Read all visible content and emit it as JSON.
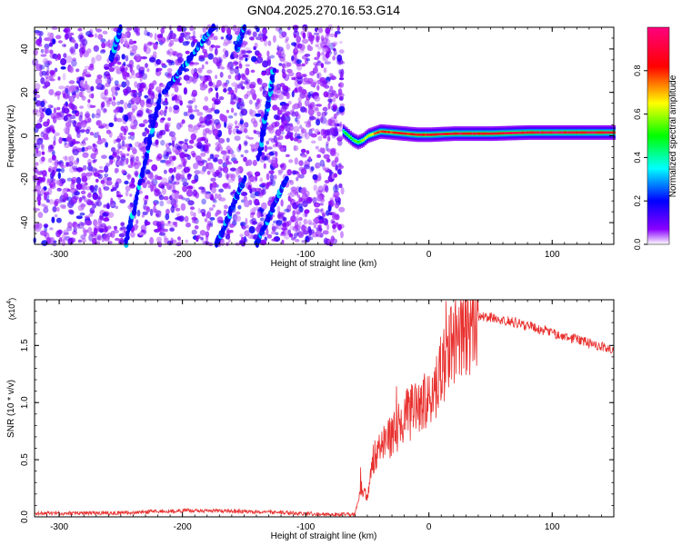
{
  "chart_data": [
    {
      "type": "heatmap",
      "title": "GN04.2025.270.16.53.G14",
      "xlabel": "Height of straight line (km)",
      "ylabel": "Frequency (Hz)",
      "xlim": [
        -320,
        150
      ],
      "ylim": [
        -50,
        50
      ],
      "xticks": [
        -300,
        -200,
        -100,
        0,
        100
      ],
      "yticks": [
        -40,
        -20,
        0,
        20,
        40
      ],
      "colorbar": {
        "label": "Normalized spectral amplitude",
        "range": [
          0,
          1
        ],
        "ticks": [
          "0.0",
          "0.2",
          "0.4",
          "0.6",
          "0.8"
        ],
        "colormap": [
          "#ffffff",
          "#7a00ff",
          "#0000ff",
          "#00ffff",
          "#00ff00",
          "#ffff00",
          "#ff0000",
          "#ff0080"
        ]
      },
      "noise_region": {
        "x_range": [
          -320,
          -70
        ],
        "y_range": [
          -50,
          50
        ],
        "typical_amplitude": 0.15
      },
      "tone_ridge": {
        "x_range": [
          -70,
          150
        ],
        "frequency_hz": [
          {
            "x": -70,
            "f": 2
          },
          {
            "x": -66,
            "f": 0
          },
          {
            "x": -62,
            "f": -2
          },
          {
            "x": -58,
            "f": -3
          },
          {
            "x": -54,
            "f": -2
          },
          {
            "x": -50,
            "f": 0
          },
          {
            "x": -45,
            "f": 1
          },
          {
            "x": -40,
            "f": 2
          },
          {
            "x": -30,
            "f": 1.5
          },
          {
            "x": -20,
            "f": 1
          },
          {
            "x": -10,
            "f": 0.5
          },
          {
            "x": 0,
            "f": 0.5
          },
          {
            "x": 20,
            "f": 1
          },
          {
            "x": 50,
            "f": 1
          },
          {
            "x": 80,
            "f": 1.5
          },
          {
            "x": 110,
            "f": 1.5
          },
          {
            "x": 150,
            "f": 1.5
          }
        ],
        "amplitude": [
          {
            "x": -70,
            "a": 0.5
          },
          {
            "x": -55,
            "a": 0.6
          },
          {
            "x": -40,
            "a": 0.85
          },
          {
            "x": -20,
            "a": 0.9
          },
          {
            "x": 0,
            "a": 0.92
          },
          {
            "x": 40,
            "a": 0.95
          },
          {
            "x": 80,
            "a": 1.0
          },
          {
            "x": 120,
            "a": 0.98
          },
          {
            "x": 150,
            "a": 0.95
          }
        ]
      },
      "diagonal_streaks": [
        {
          "x0": -246,
          "f0": -50,
          "x1": -218,
          "f1": 18
        },
        {
          "x0": -258,
          "f0": 35,
          "x1": -250,
          "f1": 50
        },
        {
          "x0": -215,
          "f0": 20,
          "x1": -175,
          "f1": 50
        },
        {
          "x0": -172,
          "f0": -50,
          "x1": -150,
          "f1": -20
        },
        {
          "x0": -138,
          "f0": -10,
          "x1": -126,
          "f1": 30
        },
        {
          "x0": -156,
          "f0": 40,
          "x1": -150,
          "f1": 50
        },
        {
          "x0": -140,
          "f0": -50,
          "x1": -116,
          "f1": -20
        }
      ]
    },
    {
      "type": "line",
      "xlabel": "Height of straight line (km)",
      "ylabel": "SNR (10 * v/v)",
      "y_multiplier": "(x10",
      "y_multiplier_exp": "4",
      "y_multiplier_close": ")",
      "xlim": [
        -320,
        150
      ],
      "ylim": [
        0,
        19000
      ],
      "xticks": [
        -300,
        -200,
        -100,
        0,
        100
      ],
      "yticks": [
        0,
        5000,
        10000,
        15000
      ],
      "ytick_labels": [
        "0.0",
        "0.5",
        "1.0",
        "1.5"
      ],
      "color": "#e8302e",
      "series": [
        {
          "name": "SNR",
          "points": [
            {
              "x": -320,
              "y": 300
            },
            {
              "x": -250,
              "y": 350
            },
            {
              "x": -200,
              "y": 550
            },
            {
              "x": -160,
              "y": 500
            },
            {
              "x": -130,
              "y": 400
            },
            {
              "x": -100,
              "y": 280
            },
            {
              "x": -80,
              "y": 200
            },
            {
              "x": -60,
              "y": 220
            },
            {
              "x": -55,
              "y": 2600
            },
            {
              "x": -50,
              "y": 1800
            },
            {
              "x": -45,
              "y": 5200
            },
            {
              "x": -40,
              "y": 6000
            },
            {
              "x": -30,
              "y": 7000
            },
            {
              "x": -20,
              "y": 8800
            },
            {
              "x": -10,
              "y": 9400
            },
            {
              "x": 0,
              "y": 10400
            },
            {
              "x": 10,
              "y": 12500
            },
            {
              "x": 20,
              "y": 15000
            },
            {
              "x": 30,
              "y": 16700
            },
            {
              "x": 40,
              "y": 17500
            },
            {
              "x": 50,
              "y": 17500
            },
            {
              "x": 70,
              "y": 17000
            },
            {
              "x": 90,
              "y": 16400
            },
            {
              "x": 110,
              "y": 15800
            },
            {
              "x": 130,
              "y": 15200
            },
            {
              "x": 150,
              "y": 14700
            }
          ]
        }
      ]
    }
  ]
}
